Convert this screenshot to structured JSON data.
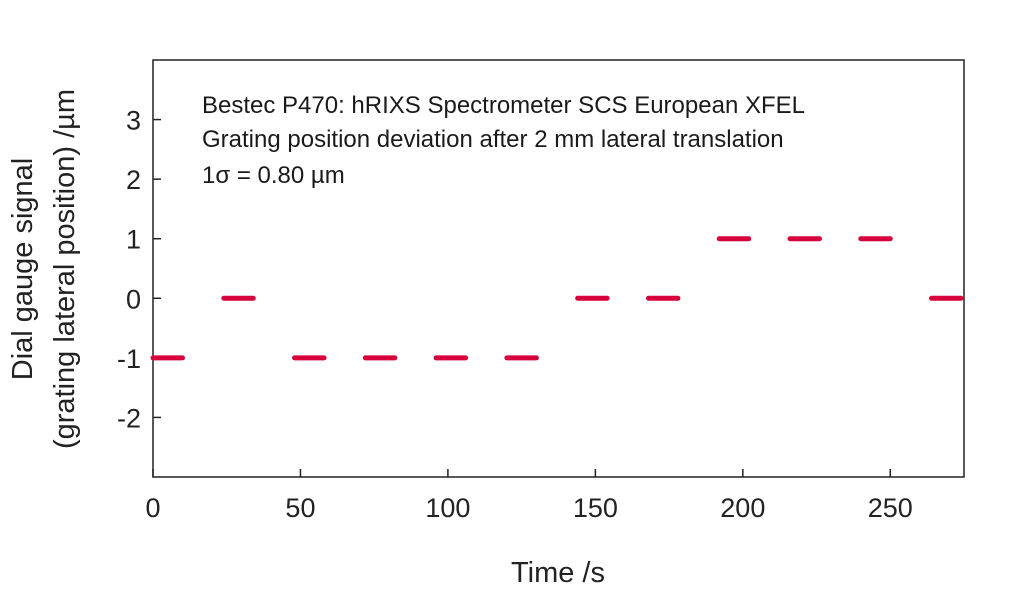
{
  "chart_data": {
    "type": "scatter",
    "xlabel": "Time /s",
    "ylabel_lines": [
      "Dial gauge signal",
      "(grating lateral position) /µm"
    ],
    "xlim": [
      0,
      275
    ],
    "ylim": [
      -3,
      4
    ],
    "xticks": [
      0,
      50,
      100,
      150,
      200,
      250
    ],
    "yticks": [
      -2,
      -1,
      0,
      1,
      2,
      3
    ],
    "xtick_labels": [
      "0",
      "50",
      "100",
      "150",
      "200",
      "250"
    ],
    "ytick_labels": [
      "-2",
      "-1",
      "0",
      "1",
      "2",
      "3"
    ],
    "annotations": [
      "Bestec P470: hRIXS Spectrometer SCS European XFEL",
      "Grating position deviation after 2 mm lateral translation",
      "1σ = 0.80 µm"
    ],
    "marker_color": "#d6003a",
    "grid": false,
    "series": [
      {
        "segments": [
          {
            "x_start": 0,
            "x_end": 10,
            "y": -1
          },
          {
            "x_start": 24,
            "x_end": 34,
            "y": 0
          },
          {
            "x_start": 48,
            "x_end": 58,
            "y": -1
          },
          {
            "x_start": 72,
            "x_end": 82,
            "y": -1
          },
          {
            "x_start": 96,
            "x_end": 106,
            "y": -1
          },
          {
            "x_start": 120,
            "x_end": 130,
            "y": -1
          },
          {
            "x_start": 144,
            "x_end": 154,
            "y": 0
          },
          {
            "x_start": 168,
            "x_end": 178,
            "y": 0
          },
          {
            "x_start": 192,
            "x_end": 202,
            "y": 1
          },
          {
            "x_start": 216,
            "x_end": 226,
            "y": 1
          },
          {
            "x_start": 240,
            "x_end": 250,
            "y": 1
          },
          {
            "x_start": 264,
            "x_end": 274,
            "y": 0
          }
        ]
      }
    ]
  }
}
